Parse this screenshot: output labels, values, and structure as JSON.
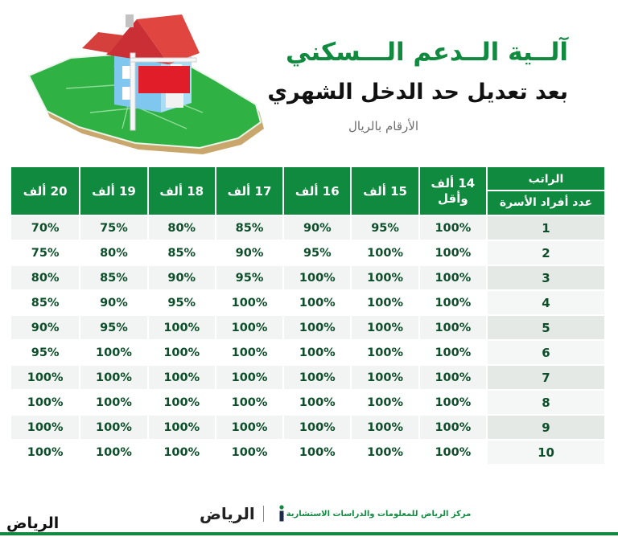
{
  "header": {
    "title_line1": "آلــية الــدعم الـــسكني",
    "title_line2": "بعد تعديل حد الدخل الشهري",
    "subtitle": "الأرقام بالريال"
  },
  "table": {
    "corner_top": "الراتب",
    "corner_bottom": "عدد أفراد الأسرة",
    "columns": [
      "14 ألف وأقل",
      "15 ألف",
      "16 ألف",
      "17 ألف",
      "18 ألف",
      "19 ألف",
      "20 ألف"
    ],
    "rows": [
      {
        "rank": "1",
        "cells": [
          "100%",
          "95%",
          "90%",
          "85%",
          "80%",
          "75%",
          "70%"
        ]
      },
      {
        "rank": "2",
        "cells": [
          "100%",
          "100%",
          "95%",
          "90%",
          "85%",
          "80%",
          "75%"
        ]
      },
      {
        "rank": "3",
        "cells": [
          "100%",
          "100%",
          "100%",
          "95%",
          "90%",
          "85%",
          "80%"
        ]
      },
      {
        "rank": "4",
        "cells": [
          "100%",
          "100%",
          "100%",
          "100%",
          "95%",
          "90%",
          "85%"
        ]
      },
      {
        "rank": "5",
        "cells": [
          "100%",
          "100%",
          "100%",
          "100%",
          "100%",
          "95%",
          "90%"
        ]
      },
      {
        "rank": "6",
        "cells": [
          "100%",
          "100%",
          "100%",
          "100%",
          "100%",
          "100%",
          "95%"
        ]
      },
      {
        "rank": "7",
        "cells": [
          "100%",
          "100%",
          "100%",
          "100%",
          "100%",
          "100%",
          "100%"
        ]
      },
      {
        "rank": "8",
        "cells": [
          "100%",
          "100%",
          "100%",
          "100%",
          "100%",
          "100%",
          "100%"
        ]
      },
      {
        "rank": "9",
        "cells": [
          "100%",
          "100%",
          "100%",
          "100%",
          "100%",
          "100%",
          "100%"
        ]
      },
      {
        "rank": "10",
        "cells": [
          "100%",
          "100%",
          "100%",
          "100%",
          "100%",
          "100%",
          "100%"
        ]
      }
    ]
  },
  "footer": {
    "left_logo": "الرياض",
    "center_brand": "الرياض",
    "center_text": "مركز الرياض للمعلومات والدراسات الاستشارية"
  },
  "colors": {
    "accent_green": "#0f8a3f",
    "dark_green_text": "#0d4e2a"
  },
  "icons": {
    "hero": "house-on-map-illustration",
    "center": "info-center-icon"
  }
}
